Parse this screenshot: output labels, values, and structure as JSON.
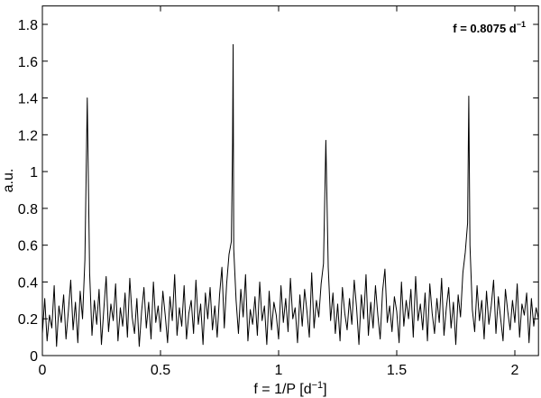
{
  "chart_data": {
    "type": "line",
    "annotation": {
      "text": "f = 0.8075 d",
      "superscript": "−1"
    },
    "xlabel": {
      "text": "f = 1/P [d",
      "superscript": "−1",
      "after": "]"
    },
    "ylabel": "a.u.",
    "color": "#000000",
    "xlim": [
      0,
      2.1
    ],
    "xticks": [
      0,
      0.5,
      1,
      1.5,
      2
    ],
    "ylim": [
      0,
      1.9
    ],
    "yticks": [
      0,
      0.2,
      0.4,
      0.6,
      0.8,
      1,
      1.2,
      1.4,
      1.6,
      1.8
    ],
    "grid": false,
    "x": [
      0,
      0.01,
      0.02,
      0.03,
      0.04,
      0.05,
      0.06,
      0.07,
      0.08,
      0.09,
      0.1,
      0.11,
      0.12,
      0.13,
      0.14,
      0.15,
      0.16,
      0.17,
      0.18,
      0.19,
      0.2,
      0.21,
      0.22,
      0.23,
      0.24,
      0.25,
      0.26,
      0.27,
      0.28,
      0.29,
      0.3,
      0.31,
      0.32,
      0.33,
      0.34,
      0.35,
      0.36,
      0.37,
      0.38,
      0.39,
      0.4,
      0.41,
      0.42,
      0.43,
      0.44,
      0.45,
      0.46,
      0.47,
      0.48,
      0.49,
      0.5,
      0.51,
      0.52,
      0.53,
      0.54,
      0.55,
      0.56,
      0.57,
      0.58,
      0.59,
      0.6,
      0.61,
      0.62,
      0.63,
      0.64,
      0.65,
      0.66,
      0.67,
      0.68,
      0.69,
      0.7,
      0.71,
      0.72,
      0.73,
      0.74,
      0.75,
      0.76,
      0.77,
      0.78,
      0.79,
      0.8,
      0.805,
      0.8075,
      0.81,
      0.82,
      0.83,
      0.84,
      0.85,
      0.86,
      0.87,
      0.88,
      0.89,
      0.9,
      0.91,
      0.92,
      0.93,
      0.94,
      0.95,
      0.96,
      0.97,
      0.98,
      0.99,
      1,
      1.01,
      1.02,
      1.03,
      1.04,
      1.05,
      1.06,
      1.07,
      1.08,
      1.09,
      1.1,
      1.11,
      1.12,
      1.13,
      1.14,
      1.15,
      1.16,
      1.17,
      1.18,
      1.19,
      1.2,
      1.21,
      1.22,
      1.23,
      1.24,
      1.25,
      1.26,
      1.27,
      1.28,
      1.29,
      1.3,
      1.31,
      1.32,
      1.33,
      1.34,
      1.35,
      1.36,
      1.37,
      1.38,
      1.39,
      1.4,
      1.41,
      1.42,
      1.43,
      1.44,
      1.45,
      1.46,
      1.47,
      1.48,
      1.49,
      1.5,
      1.51,
      1.52,
      1.53,
      1.54,
      1.55,
      1.56,
      1.57,
      1.58,
      1.59,
      1.6,
      1.61,
      1.62,
      1.63,
      1.64,
      1.65,
      1.66,
      1.67,
      1.68,
      1.69,
      1.7,
      1.71,
      1.72,
      1.73,
      1.74,
      1.75,
      1.76,
      1.77,
      1.78,
      1.79,
      1.8,
      1.805,
      1.81,
      1.82,
      1.83,
      1.84,
      1.85,
      1.86,
      1.87,
      1.88,
      1.89,
      1.9,
      1.91,
      1.92,
      1.93,
      1.94,
      1.95,
      1.96,
      1.97,
      1.98,
      1.99,
      2,
      2.01,
      2.02,
      2.03,
      2.04,
      2.05,
      2.06,
      2.07,
      2.08,
      2.09,
      2.1
    ],
    "values": [
      0.12,
      0.31,
      0.08,
      0.22,
      0.15,
      0.38,
      0.05,
      0.27,
      0.18,
      0.33,
      0.09,
      0.24,
      0.41,
      0.14,
      0.29,
      0.07,
      0.35,
      0.2,
      0.52,
      1.4,
      0.45,
      0.11,
      0.3,
      0.17,
      0.36,
      0.06,
      0.25,
      0.43,
      0.13,
      0.28,
      0.19,
      0.39,
      0.08,
      0.26,
      0.16,
      0.34,
      0.1,
      0.42,
      0.21,
      0.12,
      0.31,
      0.05,
      0.24,
      0.37,
      0.15,
      0.29,
      0.09,
      0.4,
      0.18,
      0.27,
      0.13,
      0.35,
      0.22,
      0.07,
      0.32,
      0.19,
      0.44,
      0.11,
      0.26,
      0.16,
      0.38,
      0.09,
      0.23,
      0.3,
      0.12,
      0.41,
      0.17,
      0.28,
      0.06,
      0.34,
      0.2,
      0.37,
      0.14,
      0.27,
      0.1,
      0.33,
      0.48,
      0.15,
      0.39,
      0.55,
      0.62,
      1.15,
      1.69,
      0.58,
      0.3,
      0.12,
      0.36,
      0.21,
      0.44,
      0.08,
      0.25,
      0.17,
      0.32,
      0.11,
      0.4,
      0.19,
      0.27,
      0.06,
      0.35,
      0.14,
      0.29,
      0.22,
      0.09,
      0.38,
      0.18,
      0.31,
      0.13,
      0.42,
      0.2,
      0.26,
      0.07,
      0.33,
      0.16,
      0.36,
      0.24,
      0.1,
      0.45,
      0.15,
      0.3,
      0.21,
      0.39,
      0.5,
      1.17,
      0.48,
      0.19,
      0.34,
      0.12,
      0.28,
      0.08,
      0.37,
      0.23,
      0.14,
      0.31,
      0.17,
      0.41,
      0.26,
      0.06,
      0.33,
      0.2,
      0.44,
      0.11,
      0.29,
      0.15,
      0.38,
      0.22,
      0.09,
      0.35,
      0.47,
      0.18,
      0.27,
      0.13,
      0.32,
      0.24,
      0.07,
      0.4,
      0.16,
      0.3,
      0.2,
      0.36,
      0.1,
      0.43,
      0.19,
      0.28,
      0.14,
      0.34,
      0.08,
      0.39,
      0.23,
      0.12,
      0.31,
      0.18,
      0.42,
      0.11,
      0.26,
      0.37,
      0.15,
      0.29,
      0.06,
      0.33,
      0.21,
      0.45,
      0.56,
      0.72,
      1.41,
      0.6,
      0.25,
      0.13,
      0.38,
      0.19,
      0.3,
      0.09,
      0.35,
      0.17,
      0.27,
      0.41,
      0.12,
      0.32,
      0.2,
      0.08,
      0.36,
      0.24,
      0.14,
      0.3,
      0.18,
      0.39,
      0.1,
      0.28,
      0.22,
      0.34,
      0.07,
      0.31,
      0.16,
      0.26,
      0.2
    ]
  }
}
